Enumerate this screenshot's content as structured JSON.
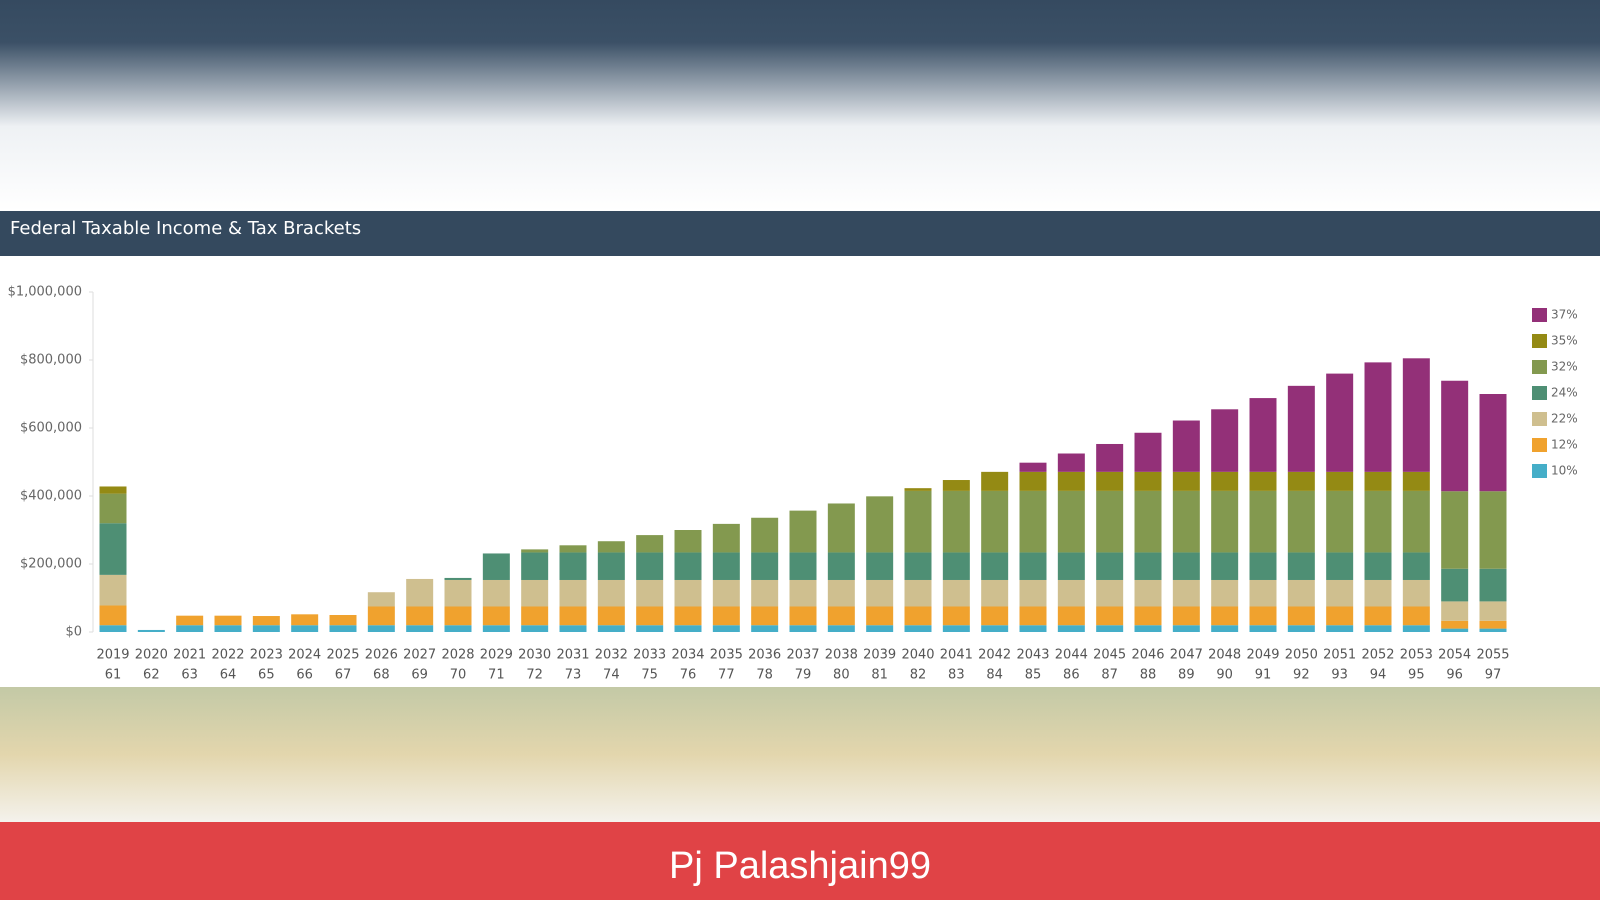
{
  "chart_data": {
    "type": "stacked-bar",
    "title": "Federal Taxable Income & Tax Brackets",
    "categories": [
      "2019",
      "2020",
      "2021",
      "2022",
      "2023",
      "2024",
      "2025",
      "2026",
      "2027",
      "2028",
      "2029",
      "2030",
      "2031",
      "2032",
      "2033",
      "2034",
      "2035",
      "2036",
      "2037",
      "2038",
      "2039",
      "2040",
      "2041",
      "2042",
      "2043",
      "2044",
      "2045",
      "2046",
      "2047",
      "2048",
      "2049",
      "2050",
      "2051",
      "2052",
      "2053",
      "2054",
      "2055"
    ],
    "sublabels": [
      "61",
      "62",
      "63",
      "64",
      "65",
      "66",
      "67",
      "68",
      "69",
      "70",
      "71",
      "72",
      "73",
      "74",
      "75",
      "76",
      "77",
      "78",
      "79",
      "80",
      "81",
      "82",
      "83",
      "84",
      "85",
      "86",
      "87",
      "88",
      "89",
      "90",
      "91",
      "92",
      "93",
      "94",
      "95",
      "96",
      "97"
    ],
    "series": [
      {
        "name": "10%",
        "color": "#45aec8",
        "values": [
          20000,
          6000,
          20000,
          20000,
          20000,
          20000,
          20000,
          20000,
          20000,
          20000,
          20000,
          20000,
          20000,
          20000,
          20000,
          20000,
          20000,
          20000,
          20000,
          20000,
          20000,
          20000,
          20000,
          20000,
          20000,
          20000,
          20000,
          20000,
          20000,
          20000,
          20000,
          20000,
          20000,
          20000,
          20000,
          10000,
          10000
        ]
      },
      {
        "name": "12%",
        "color": "#f0a22e",
        "values": [
          58000,
          0,
          28000,
          28000,
          27000,
          32000,
          30000,
          55000,
          55000,
          55000,
          55000,
          55000,
          55000,
          55000,
          55000,
          55000,
          55000,
          55000,
          55000,
          55000,
          55000,
          55000,
          55000,
          55000,
          55000,
          55000,
          55000,
          55000,
          55000,
          55000,
          55000,
          55000,
          55000,
          55000,
          55000,
          23000,
          23000
        ]
      },
      {
        "name": "22%",
        "color": "#cfbf8f",
        "values": [
          90000,
          0,
          0,
          0,
          0,
          0,
          0,
          42000,
          81000,
          78000,
          78000,
          78000,
          78000,
          78000,
          78000,
          78000,
          78000,
          78000,
          78000,
          78000,
          78000,
          78000,
          78000,
          78000,
          78000,
          78000,
          78000,
          78000,
          78000,
          78000,
          78000,
          78000,
          78000,
          78000,
          78000,
          57000,
          57000
        ]
      },
      {
        "name": "24%",
        "color": "#4e8f74",
        "values": [
          152000,
          0,
          0,
          0,
          0,
          0,
          0,
          0,
          0,
          6000,
          78000,
          81000,
          81000,
          81000,
          81000,
          81000,
          81000,
          81000,
          81000,
          81000,
          81000,
          81000,
          81000,
          81000,
          81000,
          81000,
          81000,
          81000,
          81000,
          81000,
          81000,
          81000,
          81000,
          81000,
          81000,
          96000,
          96000
        ]
      },
      {
        "name": "32%",
        "color": "#83994f",
        "values": [
          87000,
          0,
          0,
          0,
          0,
          0,
          0,
          0,
          0,
          0,
          0,
          9000,
          21000,
          33000,
          51000,
          66000,
          84000,
          102000,
          123000,
          144000,
          165000,
          181000,
          181000,
          181000,
          181000,
          181000,
          181000,
          181000,
          181000,
          181000,
          181000,
          181000,
          181000,
          181000,
          181000,
          228000,
          228000
        ]
      },
      {
        "name": "35%",
        "color": "#948a14",
        "values": [
          21000,
          0,
          0,
          0,
          0,
          0,
          0,
          0,
          0,
          0,
          0,
          0,
          0,
          0,
          0,
          0,
          0,
          0,
          0,
          0,
          0,
          8000,
          32000,
          56000,
          56000,
          56000,
          56000,
          56000,
          56000,
          56000,
          56000,
          56000,
          56000,
          56000,
          56000,
          0,
          0
        ]
      },
      {
        "name": "37%",
        "color": "#933078",
        "values": [
          0,
          0,
          0,
          0,
          0,
          0,
          0,
          0,
          0,
          0,
          0,
          0,
          0,
          0,
          0,
          0,
          0,
          0,
          0,
          0,
          0,
          0,
          0,
          0,
          27000,
          54000,
          82000,
          115000,
          151000,
          184000,
          217000,
          253000,
          289000,
          322000,
          334000,
          325000,
          286000
        ]
      }
    ],
    "ylim": [
      0,
      1000000
    ],
    "yticks": [
      {
        "value": 0,
        "label": "$0"
      },
      {
        "value": 200000,
        "label": "$200,000"
      },
      {
        "value": 400000,
        "label": "$400,000"
      },
      {
        "value": 600000,
        "label": "$600,000"
      },
      {
        "value": 800000,
        "label": "$800,000"
      },
      {
        "value": 1000000,
        "label": "$1,000,000"
      }
    ],
    "legend": "top-right"
  },
  "watermark": "Pj Palashjain99"
}
